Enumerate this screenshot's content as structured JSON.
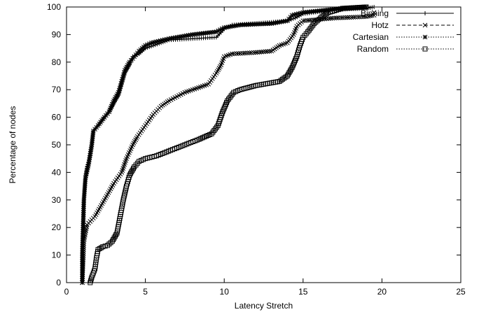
{
  "chart_data": {
    "type": "line",
    "xlabel": "Latency Stretch",
    "ylabel": "Percentage of nodes",
    "xlim": [
      0,
      25
    ],
    "ylim": [
      0,
      100
    ],
    "xticks": [
      "0",
      "5",
      "10",
      "15",
      "20",
      "25"
    ],
    "yticks": [
      "0",
      "10",
      "20",
      "30",
      "40",
      "50",
      "60",
      "70",
      "80",
      "90",
      "100"
    ],
    "grid": false,
    "legend_position": "top-right",
    "series": [
      {
        "name": "Binning",
        "line_style": "solid",
        "marker": "plus",
        "points": [
          [
            1.0,
            0
          ],
          [
            1.0,
            10
          ],
          [
            1.05,
            20
          ],
          [
            1.1,
            30
          ],
          [
            1.2,
            38
          ],
          [
            1.3,
            42
          ],
          [
            1.5,
            46
          ],
          [
            1.6,
            50
          ],
          [
            1.7,
            55
          ],
          [
            2.0,
            57
          ],
          [
            2.4,
            60
          ],
          [
            2.7,
            62
          ],
          [
            3.0,
            65
          ],
          [
            3.3,
            68
          ],
          [
            3.5,
            72
          ],
          [
            3.7,
            76
          ],
          [
            4.0,
            79
          ],
          [
            4.2,
            82
          ],
          [
            4.6,
            83
          ],
          [
            5.0,
            85
          ],
          [
            5.5,
            86
          ],
          [
            6.5,
            88
          ],
          [
            8.0,
            88.5
          ],
          [
            9.5,
            89
          ],
          [
            10.0,
            92
          ],
          [
            10.5,
            93.5
          ],
          [
            13.0,
            94.5
          ],
          [
            14.0,
            95
          ],
          [
            14.5,
            96
          ],
          [
            15.0,
            97.5
          ],
          [
            17.0,
            99
          ],
          [
            19.0,
            99.5
          ],
          [
            19.5,
            100
          ]
        ]
      },
      {
        "name": "Hotz",
        "line_style": "dashed",
        "marker": "cross",
        "points": [
          [
            1.0,
            0
          ],
          [
            1.1,
            15
          ],
          [
            1.3,
            21
          ],
          [
            1.8,
            24
          ],
          [
            2.2,
            28
          ],
          [
            2.6,
            32
          ],
          [
            3.0,
            36
          ],
          [
            3.5,
            40
          ],
          [
            3.8,
            45
          ],
          [
            4.2,
            50
          ],
          [
            4.5,
            53
          ],
          [
            5.0,
            57
          ],
          [
            5.5,
            61
          ],
          [
            6.0,
            64
          ],
          [
            6.5,
            66
          ],
          [
            7.5,
            69
          ],
          [
            8.5,
            71
          ],
          [
            9.0,
            72
          ],
          [
            9.5,
            76
          ],
          [
            9.8,
            79
          ],
          [
            10.0,
            82
          ],
          [
            10.5,
            83
          ],
          [
            12.0,
            83.5
          ],
          [
            13.0,
            84
          ],
          [
            13.5,
            86
          ],
          [
            14.0,
            87
          ],
          [
            14.4,
            90
          ],
          [
            14.6,
            93
          ],
          [
            15.0,
            95
          ],
          [
            16.0,
            95.5
          ],
          [
            17.0,
            96
          ],
          [
            19.0,
            96.5
          ],
          [
            19.5,
            97
          ],
          [
            19.5,
            98
          ]
        ]
      },
      {
        "name": "Cartesian",
        "line_style": "dotted",
        "marker": "star",
        "points": [
          [
            1.0,
            0
          ],
          [
            1.0,
            10
          ],
          [
            1.05,
            20
          ],
          [
            1.1,
            30
          ],
          [
            1.2,
            38
          ],
          [
            1.4,
            43
          ],
          [
            1.6,
            50
          ],
          [
            1.7,
            55
          ],
          [
            2.0,
            57
          ],
          [
            2.4,
            60
          ],
          [
            2.7,
            62
          ],
          [
            3.0,
            66
          ],
          [
            3.3,
            69
          ],
          [
            3.5,
            73
          ],
          [
            3.7,
            77
          ],
          [
            4.0,
            80
          ],
          [
            4.3,
            82
          ],
          [
            4.6,
            84
          ],
          [
            5.0,
            86
          ],
          [
            5.4,
            87
          ],
          [
            6.5,
            88.5
          ],
          [
            8.0,
            90
          ],
          [
            9.5,
            91
          ],
          [
            10.0,
            92.5
          ],
          [
            11.0,
            93.5
          ],
          [
            13.0,
            94
          ],
          [
            14.0,
            95
          ],
          [
            14.3,
            97
          ],
          [
            15.0,
            98
          ],
          [
            17.5,
            99.5
          ],
          [
            19.0,
            100
          ]
        ]
      },
      {
        "name": "Random",
        "line_style": "dotted",
        "marker": "square",
        "points": [
          [
            1.5,
            0
          ],
          [
            1.6,
            2
          ],
          [
            1.8,
            5
          ],
          [
            1.9,
            9
          ],
          [
            2.0,
            12
          ],
          [
            2.3,
            13
          ],
          [
            2.6,
            13.5
          ],
          [
            2.9,
            15
          ],
          [
            3.2,
            18
          ],
          [
            3.4,
            24
          ],
          [
            3.6,
            30
          ],
          [
            3.8,
            35
          ],
          [
            4.0,
            39
          ],
          [
            4.3,
            42
          ],
          [
            4.6,
            44
          ],
          [
            5.0,
            45
          ],
          [
            5.7,
            46
          ],
          [
            6.6,
            48
          ],
          [
            7.5,
            50
          ],
          [
            8.4,
            52
          ],
          [
            9.2,
            54
          ],
          [
            9.6,
            57
          ],
          [
            9.9,
            62
          ],
          [
            10.2,
            66
          ],
          [
            10.6,
            69
          ],
          [
            11.0,
            70
          ],
          [
            12.0,
            71.5
          ],
          [
            13.0,
            72.5
          ],
          [
            13.5,
            73
          ],
          [
            14.0,
            75
          ],
          [
            14.3,
            78
          ],
          [
            14.6,
            82
          ],
          [
            14.8,
            86
          ],
          [
            15.0,
            89
          ],
          [
            15.3,
            91
          ],
          [
            15.7,
            94
          ],
          [
            16.2,
            96.5
          ],
          [
            16.6,
            98
          ],
          [
            17.5,
            99.5
          ],
          [
            19.0,
            100
          ]
        ]
      }
    ]
  }
}
